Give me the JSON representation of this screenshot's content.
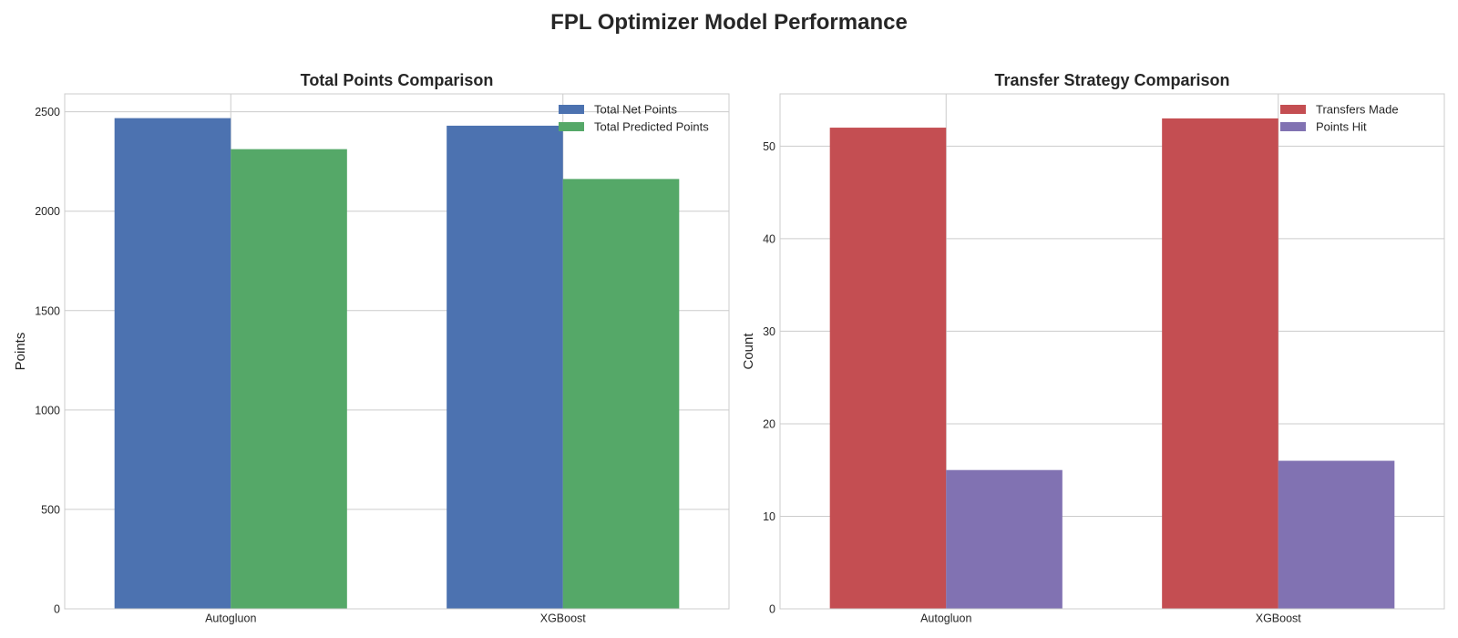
{
  "figure": {
    "title": "FPL Optimizer Model Performance"
  },
  "chart_data": [
    {
      "type": "bar",
      "title": "Total Points Comparison",
      "xlabel": "",
      "ylabel": "Points",
      "categories": [
        "Autogluon",
        "XGBoost"
      ],
      "series": [
        {
          "name": "Total Net Points",
          "values": [
            2468,
            2430
          ],
          "color": "#4c72b0"
        },
        {
          "name": "Total Predicted Points",
          "values": [
            2312,
            2162
          ],
          "color": "#55a868"
        }
      ],
      "ylim": [
        0,
        2590
      ],
      "yticks": [
        0,
        500,
        1000,
        1500,
        2000,
        2500
      ],
      "grid": true,
      "legend": "top-right"
    },
    {
      "type": "bar",
      "title": "Transfer Strategy Comparison",
      "xlabel": "",
      "ylabel": "Count",
      "categories": [
        "Autogluon",
        "XGBoost"
      ],
      "series": [
        {
          "name": "Transfers Made",
          "values": [
            52,
            53
          ],
          "color": "#c44e52"
        },
        {
          "name": "Points Hit",
          "values": [
            15,
            16
          ],
          "color": "#8172b2"
        }
      ],
      "ylim": [
        0,
        55.65
      ],
      "yticks": [
        0,
        10,
        20,
        30,
        40,
        50
      ],
      "grid": true,
      "legend": "top-right"
    }
  ]
}
